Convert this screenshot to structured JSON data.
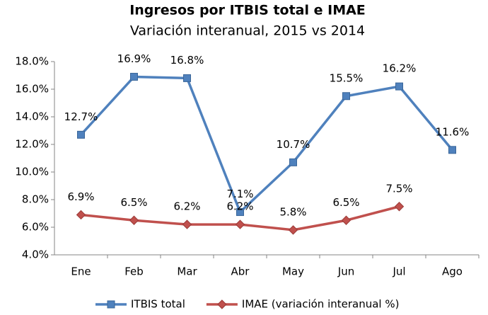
{
  "chart_data": {
    "type": "line",
    "title": "Ingresos por ITBIS total e IMAE",
    "subtitle": "Variación interanual, 2015 vs 2014",
    "categories": [
      "Ene",
      "Feb",
      "Mar",
      "Abr",
      "May",
      "Jun",
      "Jul",
      "Ago"
    ],
    "series": [
      {
        "name": "ITBIS total",
        "color": "#4f81bd",
        "marker": "square",
        "values": [
          12.7,
          16.9,
          16.8,
          7.1,
          10.7,
          15.5,
          16.2,
          11.6
        ],
        "value_labels": [
          "12.7%",
          "16.9%",
          "16.8%",
          "7.1%",
          "10.7%",
          "15.5%",
          "16.2%",
          "11.6%"
        ]
      },
      {
        "name": "IMAE (variación interanual %)",
        "color": "#c0504d",
        "marker": "diamond",
        "values": [
          6.9,
          6.5,
          6.2,
          6.2,
          5.8,
          6.5,
          7.5,
          null
        ],
        "value_labels": [
          "6.9%",
          "6.5%",
          "6.2%",
          "6.2%",
          "5.8%",
          "6.5%",
          "7.5%",
          null
        ]
      }
    ],
    "ylim": [
      4,
      18
    ],
    "yticks": [
      {
        "value": 4,
        "label": "4.0%"
      },
      {
        "value": 6,
        "label": "6.0%"
      },
      {
        "value": 8,
        "label": "8.0%"
      },
      {
        "value": 10,
        "label": "10.0%"
      },
      {
        "value": 12,
        "label": "12.0%"
      },
      {
        "value": 14,
        "label": "14.0%"
      },
      {
        "value": 16,
        "label": "16.0%"
      },
      {
        "value": 18,
        "label": "18.0%"
      }
    ],
    "grid": false,
    "legend": "bottom"
  }
}
